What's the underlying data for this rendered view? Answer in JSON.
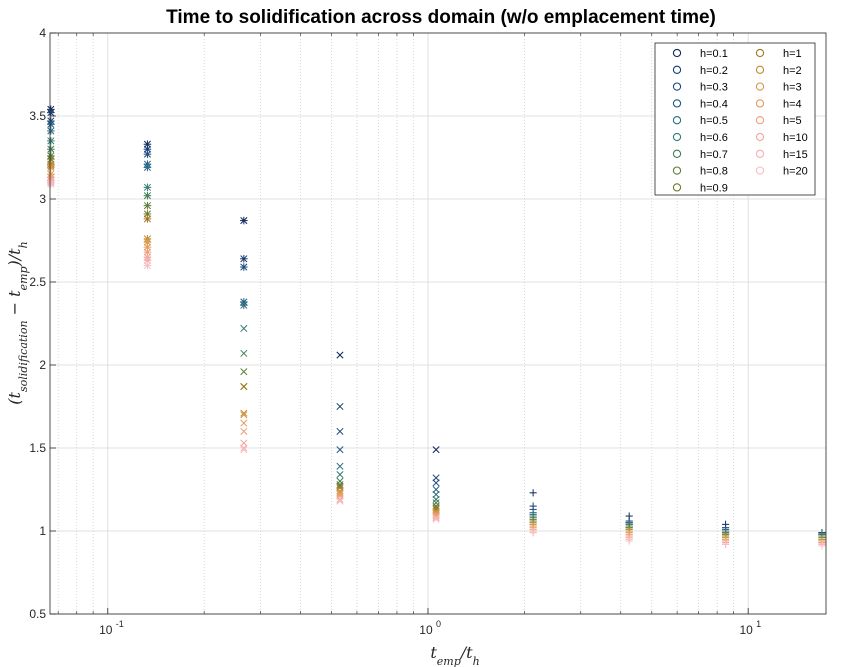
{
  "chart_data": {
    "type": "scatter",
    "title": "Time to solidification across domain (w/o emplacement time)",
    "xlabel": "t_emp/t_h",
    "ylabel": "(t_solidification − t_emp)/t_h",
    "xscale": "log",
    "xlim": [
      0.066,
      17.5
    ],
    "ylim": [
      0.5,
      4
    ],
    "x_ticks": [
      {
        "base": "10",
        "exp": "-1",
        "value": 0.1
      },
      {
        "base": "10",
        "exp": "0",
        "value": 1
      },
      {
        "base": "10",
        "exp": "1",
        "value": 10
      }
    ],
    "y_ticks": [
      {
        "label": "0.5",
        "value": 0.5
      },
      {
        "label": "1",
        "value": 1
      },
      {
        "label": "1.5",
        "value": 1.5
      },
      {
        "label": "2",
        "value": 2
      },
      {
        "label": "2.5",
        "value": 2.5
      },
      {
        "label": "3",
        "value": 3
      },
      {
        "label": "3.5",
        "value": 3.5
      },
      {
        "label": "4",
        "value": 4
      }
    ],
    "grid": true,
    "legend_position": "top-right",
    "x": [
      0.0664,
      0.133,
      0.266,
      0.531,
      1.06,
      2.13,
      4.25,
      8.5,
      17.0
    ],
    "series": [
      {
        "name": "h=0.1",
        "color": "#0c2a5e",
        "values": [
          3.54,
          3.33,
          2.87,
          2.06,
          1.49,
          1.23,
          1.09,
          1.04,
          0.99
        ]
      },
      {
        "name": "h=0.2",
        "color": "#153b73",
        "values": [
          3.52,
          3.3,
          2.64,
          1.75,
          1.32,
          1.15,
          1.06,
          1.02,
          0.99
        ]
      },
      {
        "name": "h=0.3",
        "color": "#1b4c7e",
        "values": [
          3.47,
          3.27,
          2.59,
          1.6,
          1.29,
          1.13,
          1.05,
          1.01,
          0.99
        ]
      },
      {
        "name": "h=0.4",
        "color": "#205a85",
        "values": [
          3.45,
          3.21,
          2.38,
          1.49,
          1.25,
          1.11,
          1.05,
          1.0,
          0.98
        ]
      },
      {
        "name": "h=0.5",
        "color": "#2a6b82",
        "values": [
          3.41,
          3.19,
          2.36,
          1.39,
          1.22,
          1.1,
          1.04,
          1.0,
          0.98
        ]
      },
      {
        "name": "h=0.6",
        "color": "#357a72",
        "values": [
          3.35,
          3.07,
          2.22,
          1.34,
          1.19,
          1.09,
          1.04,
          0.99,
          0.98
        ]
      },
      {
        "name": "h=0.7",
        "color": "#3f7d55",
        "values": [
          3.3,
          3.02,
          2.07,
          1.3,
          1.17,
          1.08,
          1.03,
          0.99,
          0.97
        ]
      },
      {
        "name": "h=0.8",
        "color": "#5a7d36",
        "values": [
          3.26,
          2.96,
          1.96,
          1.28,
          1.15,
          1.07,
          1.02,
          0.98,
          0.97
        ]
      },
      {
        "name": "h=0.9",
        "color": "#737a2a",
        "values": [
          3.24,
          2.91,
          1.87,
          1.27,
          1.14,
          1.06,
          1.02,
          0.98,
          0.96
        ]
      },
      {
        "name": "h=1",
        "color": "#a07820",
        "values": [
          3.21,
          2.88,
          1.87,
          1.26,
          1.13,
          1.05,
          1.01,
          0.97,
          0.95
        ]
      },
      {
        "name": "h=2",
        "color": "#c48a2c",
        "values": [
          3.2,
          2.76,
          1.71,
          1.24,
          1.12,
          1.04,
          1.0,
          0.96,
          0.94
        ]
      },
      {
        "name": "h=3",
        "color": "#d29a48",
        "values": [
          3.19,
          2.74,
          1.7,
          1.23,
          1.11,
          1.03,
          0.99,
          0.95,
          0.94
        ]
      },
      {
        "name": "h=4",
        "color": "#e59a5e",
        "values": [
          3.15,
          2.71,
          1.65,
          1.22,
          1.1,
          1.02,
          0.98,
          0.94,
          0.93
        ]
      },
      {
        "name": "h=5",
        "color": "#ef9c7a",
        "values": [
          3.13,
          2.68,
          1.6,
          1.21,
          1.09,
          1.01,
          0.97,
          0.94,
          0.93
        ]
      },
      {
        "name": "h=10",
        "color": "#f2a496",
        "values": [
          3.11,
          2.65,
          1.53,
          1.19,
          1.08,
          1.0,
          0.96,
          0.93,
          0.92
        ]
      },
      {
        "name": "h=15",
        "color": "#f5adb0",
        "values": [
          3.1,
          2.63,
          1.5,
          1.18,
          1.08,
          0.99,
          0.95,
          0.92,
          0.92
        ]
      },
      {
        "name": "h=20",
        "color": "#f7bdc2",
        "values": [
          3.09,
          2.6,
          1.49,
          1.18,
          1.07,
          0.99,
          0.94,
          0.92,
          0.91
        ]
      }
    ]
  }
}
